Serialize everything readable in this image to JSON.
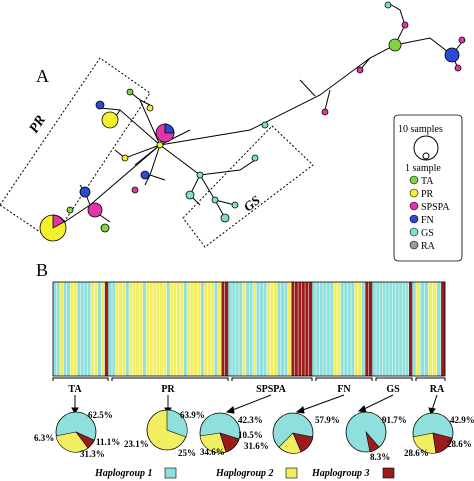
{
  "panel_a": {
    "label": "A",
    "group_labels": {
      "pr": "PR",
      "gs": "GS"
    },
    "legend": {
      "size_large": "10 samples",
      "size_small": "1 sample",
      "items": [
        {
          "code": "TA",
          "color": "#7fd641"
        },
        {
          "code": "PR",
          "color": "#f4f02b"
        },
        {
          "code": "SPSPA",
          "color": "#e236a8"
        },
        {
          "code": "FN",
          "color": "#2d4ad4"
        },
        {
          "code": "GS",
          "color": "#7fe0d2"
        },
        {
          "code": "RA",
          "color": "#9a9a9a"
        }
      ]
    }
  },
  "panel_b": {
    "label": "B",
    "haplogroup_colors": {
      "h1": "#8fe0dc",
      "h2": "#f2ee62",
      "h3": "#9b1b1b"
    },
    "populations": [
      {
        "name": "TA",
        "pcts": [
          "62.5%",
          "6.3%",
          "11.1%",
          "31.3%"
        ]
      },
      {
        "name": "PR",
        "pcts": [
          "63.9%",
          "23.1%",
          "25%"
        ]
      },
      {
        "name": "SPSPA",
        "pcts": [
          "42.3%",
          "10.5%",
          "34.6%",
          "31.6%"
        ]
      },
      {
        "name": "FN",
        "pcts": [
          "57.9%"
        ]
      },
      {
        "name": "GS",
        "pcts": [
          "91.7%",
          "8.3%"
        ]
      },
      {
        "name": "RA",
        "pcts": [
          "42.9%",
          "28.6%",
          "28.6%"
        ]
      }
    ],
    "haplogroup_legend": [
      {
        "label": "Haplogroup 1",
        "color": "#8fe0dc"
      },
      {
        "label": "Haplogroup 2",
        "color": "#f2ee62"
      },
      {
        "label": "Haplogroup 3",
        "color": "#9b1b1b"
      }
    ]
  }
}
